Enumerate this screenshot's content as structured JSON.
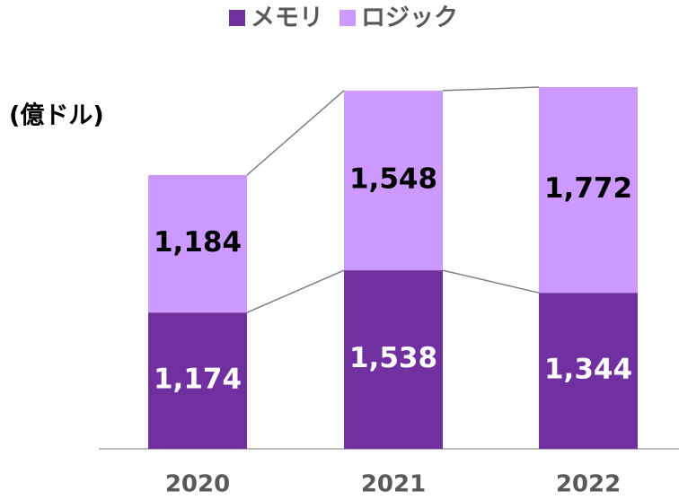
{
  "chart_data": {
    "type": "stacked_bar",
    "unit_label": "(億ドル)",
    "categories": [
      "2020",
      "2021",
      "2022"
    ],
    "series": [
      {
        "name": "メモリ",
        "color": "#7030a0",
        "values": [
          1174,
          1538,
          1344
        ],
        "value_labels": [
          "1,174",
          "1,538",
          "1,344"
        ]
      },
      {
        "name": "ロジック",
        "color": "#cc99ff",
        "values": [
          1184,
          1548,
          1772
        ],
        "value_labels": [
          "1,184",
          "1,548",
          "1,772"
        ]
      }
    ],
    "legend": "top"
  }
}
